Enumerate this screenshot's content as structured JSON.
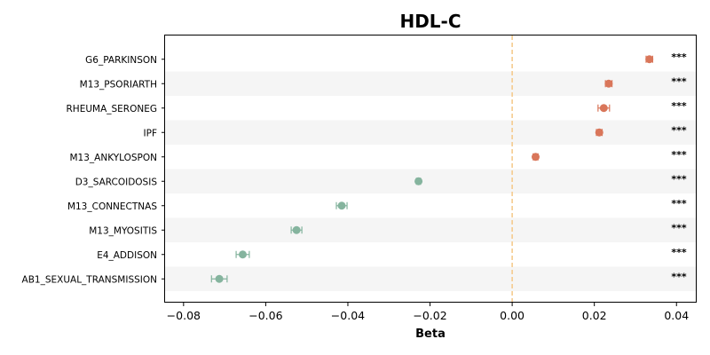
{
  "chart_data": {
    "type": "scatter",
    "title": "HDL-C",
    "xlabel": "Beta",
    "ylabel": "",
    "xlim": [
      -0.0845,
      0.0447
    ],
    "x_ticks": [
      "−0.08",
      "−0.06",
      "−0.04",
      "−0.02",
      "0.00",
      "0.02",
      "0.04"
    ],
    "x_tick_values": [
      -0.08,
      -0.06,
      -0.04,
      -0.02,
      0.0,
      0.02,
      0.04
    ],
    "reference_line": 0.0,
    "grid": false,
    "row_banding": true,
    "colors": {
      "positive": "#d9765a",
      "negative": "#85b49e",
      "reference_line": "#f5c786",
      "band": "#f5f5f5"
    },
    "categories": [
      "G6_PARKINSON",
      "M13_PSORIARTH",
      "RHEUMA_SERONEG",
      "IPF",
      "M13_ANKYLOSPON",
      "D3_SARCOIDOSIS",
      "M13_CONNECTNAS",
      "M13_MYOSITIS",
      "E4_ADDISON",
      "AB1_SEXUAL_TRANSMISSION"
    ],
    "beta": [
      0.0334,
      0.0235,
      0.0223,
      0.0212,
      0.0057,
      -0.0228,
      -0.0415,
      -0.0525,
      -0.0656,
      -0.0713
    ],
    "ci_low": [
      0.0326,
      0.0227,
      0.0209,
      0.0205,
      0.0051,
      -0.0233,
      -0.0428,
      -0.0538,
      -0.0672,
      -0.0732
    ],
    "ci_high": [
      0.0342,
      0.0243,
      0.0237,
      0.0219,
      0.0063,
      -0.0223,
      -0.0402,
      -0.0512,
      -0.064,
      -0.0694
    ],
    "significance": [
      "***",
      "***",
      "***",
      "***",
      "***",
      "***",
      "***",
      "***",
      "***",
      "***"
    ]
  }
}
